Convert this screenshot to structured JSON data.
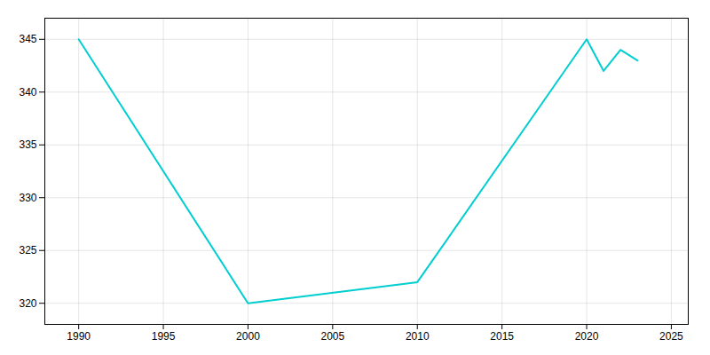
{
  "chart_data": {
    "type": "line",
    "x": [
      1990,
      2000,
      2010,
      2020,
      2021,
      2022,
      2023
    ],
    "values": [
      345,
      320,
      322,
      345,
      342,
      344,
      343
    ],
    "color": "#00CED1",
    "xlim": [
      1988,
      2026
    ],
    "ylim": [
      318,
      347
    ],
    "xticks": [
      1990,
      1995,
      2000,
      2005,
      2010,
      2015,
      2020,
      2025
    ],
    "yticks": [
      320,
      325,
      330,
      335,
      340,
      345
    ],
    "grid": true
  }
}
